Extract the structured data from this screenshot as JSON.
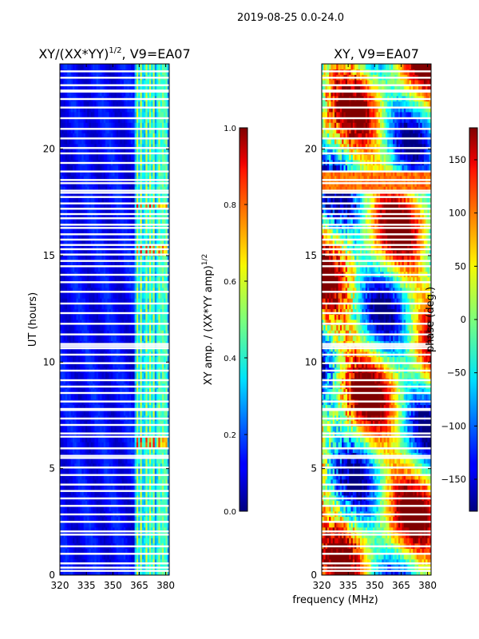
{
  "suptitle": "2019-08-25 0.0-24.0",
  "chart_data": [
    {
      "type": "heatmap",
      "title_base": "XY/(XX*YY)",
      "title_sup": "1/2",
      "title_tail": ", V9=EA07",
      "xlabel": "",
      "ylabel": "UT (hours)",
      "xlim": [
        320,
        382
      ],
      "ylim": [
        0,
        24
      ],
      "xticks": [
        320,
        335,
        350,
        365,
        380
      ],
      "yticks": [
        0,
        5,
        10,
        15,
        20
      ],
      "bright_channels_mhz": [
        364,
        366,
        369,
        371,
        373,
        376,
        378,
        380
      ],
      "colorbar": {
        "label_base": "XY amp. / (XX*YY amp)",
        "label_sup": "1/2",
        "range": [
          0.0,
          1.0
        ],
        "ticks": [
          "0.0",
          "0.2",
          "0.4",
          "0.6",
          "0.8",
          "1.0"
        ],
        "tick_values": [
          0.0,
          0.2,
          0.4,
          0.6,
          0.8,
          1.0
        ]
      }
    },
    {
      "type": "heatmap",
      "title": "XY, V9=EA07",
      "xlabel": "frequency (MHz)",
      "ylabel": "",
      "xlim": [
        320,
        382
      ],
      "ylim": [
        0,
        24
      ],
      "xticks": [
        320,
        335,
        350,
        365,
        380
      ],
      "yticks": [
        0,
        5,
        10,
        15,
        20
      ],
      "colorbar": {
        "label": "phase (deg.)",
        "range": [
          -180,
          180
        ],
        "ticks": [
          "150",
          "100",
          "50",
          "0",
          "−50",
          "−100",
          "−150"
        ],
        "tick_values": [
          150,
          100,
          50,
          0,
          -50,
          -100,
          -150
        ]
      }
    }
  ],
  "flagged_rows_ut": [
    0.2,
    0.35,
    0.55,
    1.0,
    1.35,
    1.9,
    2.05,
    2.5,
    2.85,
    3.25,
    3.6,
    3.95,
    4.25,
    4.7,
    5.05,
    5.5,
    5.6,
    5.95,
    6.5,
    6.65,
    7.05,
    7.35,
    7.75,
    7.8,
    8.15,
    8.55,
    8.85,
    9.15,
    9.6,
    9.95,
    10.35,
    10.65,
    10.75,
    10.85,
    11.3,
    11.8,
    12.3,
    12.75,
    13.3,
    13.75,
    14.1,
    14.5,
    14.75,
    15.05,
    15.3,
    15.5,
    15.75,
    16.0,
    16.3,
    16.45,
    16.75,
    16.95,
    17.2,
    17.45,
    17.75,
    17.95,
    18.05,
    18.4,
    18.55,
    18.95,
    19.35,
    19.8,
    20.05,
    20.5,
    20.95,
    21.45,
    21.95,
    22.35,
    22.7,
    22.75,
    23.0,
    23.35,
    23.65
  ]
}
